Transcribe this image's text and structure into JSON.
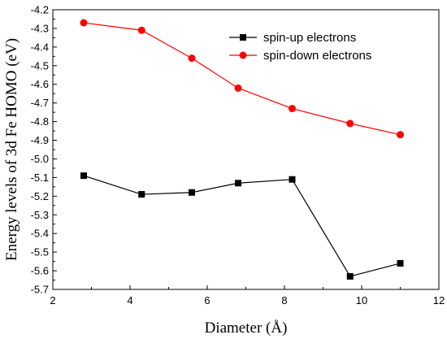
{
  "chart_data": {
    "type": "line",
    "xlabel": "Diameter (Å)",
    "ylabel": "Energy levels of 3d Fe HOMO (eV)",
    "xlim": [
      2,
      12
    ],
    "ylim": [
      -5.7,
      -4.2
    ],
    "x_ticks": [
      2,
      4,
      6,
      8,
      10,
      12
    ],
    "y_ticks": [
      -4.2,
      -4.3,
      -4.4,
      -4.5,
      -4.6,
      -4.7,
      -4.8,
      -4.9,
      -5.0,
      -5.1,
      -5.2,
      -5.3,
      -5.4,
      -5.5,
      -5.6,
      -5.7
    ],
    "grid": false,
    "legend_position": "top-right",
    "series": [
      {
        "name": "spin-up electrons",
        "color": "#000000",
        "marker": "square",
        "x": [
          2.8,
          4.3,
          5.6,
          6.8,
          8.2,
          9.7,
          11.0
        ],
        "y": [
          -5.09,
          -5.19,
          -5.18,
          -5.13,
          -5.11,
          -5.63,
          -5.56
        ]
      },
      {
        "name": "spin-down electrons",
        "color": "#ff0000",
        "marker": "circle",
        "x": [
          2.8,
          4.3,
          5.6,
          6.8,
          8.2,
          9.7,
          11.0
        ],
        "y": [
          -4.27,
          -4.31,
          -4.46,
          -4.62,
          -4.73,
          -4.81,
          -4.87
        ]
      }
    ]
  }
}
